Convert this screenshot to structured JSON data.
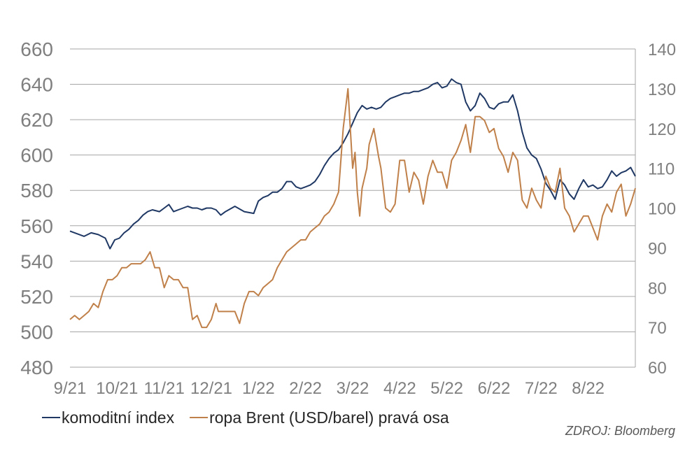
{
  "chart_data": {
    "type": "line",
    "title": "",
    "xlabel": "",
    "ylabel": "",
    "x_tick_labels": [
      "9/21",
      "10/21",
      "11/21",
      "12/21",
      "1/22",
      "2/22",
      "3/22",
      "4/22",
      "5/22",
      "6/22",
      "7/22",
      "8/22"
    ],
    "x_range": [
      0,
      12
    ],
    "y_left": {
      "ticks": [
        "660",
        "640",
        "620",
        "600",
        "580",
        "560",
        "540",
        "520",
        "500",
        "480"
      ],
      "range": [
        480,
        660
      ]
    },
    "y_right": {
      "ticks": [
        "140",
        "130",
        "120",
        "110",
        "100",
        "90",
        "80",
        "70",
        "60"
      ],
      "range": [
        60,
        140
      ]
    },
    "grid": "horizontal",
    "legend_position": "bottom-left",
    "source_note": "ZDROJ: Bloomberg",
    "series": [
      {
        "name": "komoditní index",
        "axis": "left",
        "color": "#1f3864",
        "x": [
          0.0,
          0.1,
          0.2,
          0.3,
          0.45,
          0.6,
          0.75,
          0.85,
          0.95,
          1.05,
          1.15,
          1.25,
          1.35,
          1.45,
          1.55,
          1.65,
          1.75,
          1.9,
          2.0,
          2.1,
          2.2,
          2.3,
          2.4,
          2.5,
          2.6,
          2.7,
          2.8,
          2.9,
          3.0,
          3.1,
          3.2,
          3.3,
          3.5,
          3.7,
          3.9,
          4.0,
          4.1,
          4.2,
          4.3,
          4.4,
          4.5,
          4.6,
          4.7,
          4.8,
          4.9,
          5.0,
          5.1,
          5.2,
          5.3,
          5.4,
          5.5,
          5.6,
          5.7,
          5.8,
          5.9,
          6.0,
          6.1,
          6.2,
          6.3,
          6.4,
          6.5,
          6.6,
          6.7,
          6.8,
          6.9,
          7.0,
          7.1,
          7.2,
          7.3,
          7.4,
          7.5,
          7.6,
          7.7,
          7.8,
          7.9,
          8.0,
          8.1,
          8.2,
          8.3,
          8.4,
          8.5,
          8.6,
          8.7,
          8.8,
          8.9,
          9.0,
          9.1,
          9.2,
          9.3,
          9.4,
          9.5,
          9.6,
          9.7,
          9.8,
          9.9,
          10.0,
          10.1,
          10.2,
          10.3,
          10.4,
          10.5,
          10.6,
          10.7,
          10.8,
          10.9,
          11.0,
          11.1,
          11.2,
          11.3,
          11.4,
          11.5,
          11.6,
          11.7,
          11.8,
          11.9,
          12.0
        ],
        "values": [
          557,
          556,
          555,
          554,
          556,
          555,
          553,
          547,
          552,
          553,
          556,
          558,
          561,
          563,
          566,
          568,
          569,
          568,
          570,
          572,
          568,
          569,
          570,
          571,
          570,
          570,
          569,
          570,
          570,
          569,
          566,
          568,
          571,
          568,
          567,
          574,
          576,
          577,
          579,
          579,
          581,
          585,
          585,
          582,
          581,
          582,
          583,
          585,
          589,
          594,
          598,
          601,
          603,
          607,
          612,
          618,
          624,
          628,
          626,
          627,
          626,
          627,
          630,
          632,
          633,
          634,
          635,
          635,
          636,
          636,
          637,
          638,
          640,
          641,
          638,
          639,
          643,
          641,
          640,
          630,
          625,
          628,
          635,
          632,
          627,
          626,
          629,
          630,
          630,
          634,
          625,
          613,
          604,
          600,
          598,
          592,
          584,
          580,
          575,
          586,
          583,
          578,
          575,
          581,
          586,
          582,
          583,
          581,
          582,
          586,
          591,
          588,
          590,
          591,
          593,
          588
        ]
      },
      {
        "name": "ropa Brent (USD/barel) pravá osa",
        "axis": "right",
        "color": "#c0804a",
        "x": [
          0.0,
          0.1,
          0.2,
          0.3,
          0.4,
          0.5,
          0.6,
          0.7,
          0.8,
          0.9,
          1.0,
          1.1,
          1.2,
          1.3,
          1.4,
          1.5,
          1.6,
          1.7,
          1.8,
          1.9,
          2.0,
          2.1,
          2.2,
          2.3,
          2.4,
          2.5,
          2.6,
          2.7,
          2.8,
          2.9,
          3.0,
          3.1,
          3.15,
          3.25,
          3.35,
          3.5,
          3.6,
          3.7,
          3.8,
          3.9,
          4.0,
          4.1,
          4.2,
          4.3,
          4.4,
          4.5,
          4.6,
          4.7,
          4.8,
          4.9,
          5.0,
          5.1,
          5.2,
          5.3,
          5.4,
          5.5,
          5.6,
          5.7,
          5.8,
          5.9,
          6.0,
          6.05,
          6.1,
          6.15,
          6.2,
          6.3,
          6.35,
          6.45,
          6.55,
          6.6,
          6.7,
          6.8,
          6.9,
          7.0,
          7.1,
          7.2,
          7.3,
          7.4,
          7.5,
          7.6,
          7.7,
          7.8,
          7.9,
          8.0,
          8.1,
          8.2,
          8.3,
          8.4,
          8.5,
          8.6,
          8.7,
          8.8,
          8.9,
          9.0,
          9.1,
          9.2,
          9.3,
          9.4,
          9.5,
          9.6,
          9.7,
          9.8,
          9.9,
          10.0,
          10.1,
          10.2,
          10.3,
          10.4,
          10.5,
          10.6,
          10.7,
          10.8,
          10.9,
          11.0,
          11.1,
          11.2,
          11.3,
          11.4,
          11.5,
          11.6,
          11.7,
          11.8,
          11.9,
          12.0
        ],
        "values": [
          72,
          73,
          72,
          73,
          74,
          76,
          75,
          79,
          82,
          82,
          83,
          85,
          85,
          86,
          86,
          86,
          87,
          89,
          85,
          85,
          80,
          83,
          82,
          82,
          80,
          80,
          72,
          73,
          70,
          70,
          72,
          76,
          74,
          74,
          74,
          74,
          71,
          76,
          79,
          79,
          78,
          80,
          81,
          82,
          85,
          87,
          89,
          90,
          91,
          92,
          92,
          94,
          95,
          96,
          98,
          99,
          101,
          104,
          120,
          130,
          110,
          114,
          104,
          98,
          105,
          110,
          116,
          120,
          113,
          110,
          100,
          99,
          101,
          112,
          112,
          104,
          109,
          107,
          101,
          108,
          112,
          109,
          109,
          105,
          112,
          114,
          117,
          121,
          114,
          123,
          123,
          122,
          119,
          120,
          115,
          113,
          109,
          114,
          112,
          102,
          100,
          105,
          102,
          100,
          108,
          105,
          104,
          110,
          100,
          98,
          94,
          96,
          98,
          98,
          95,
          92,
          98,
          101,
          99,
          104,
          106,
          98,
          101,
          105
        ]
      }
    ]
  }
}
